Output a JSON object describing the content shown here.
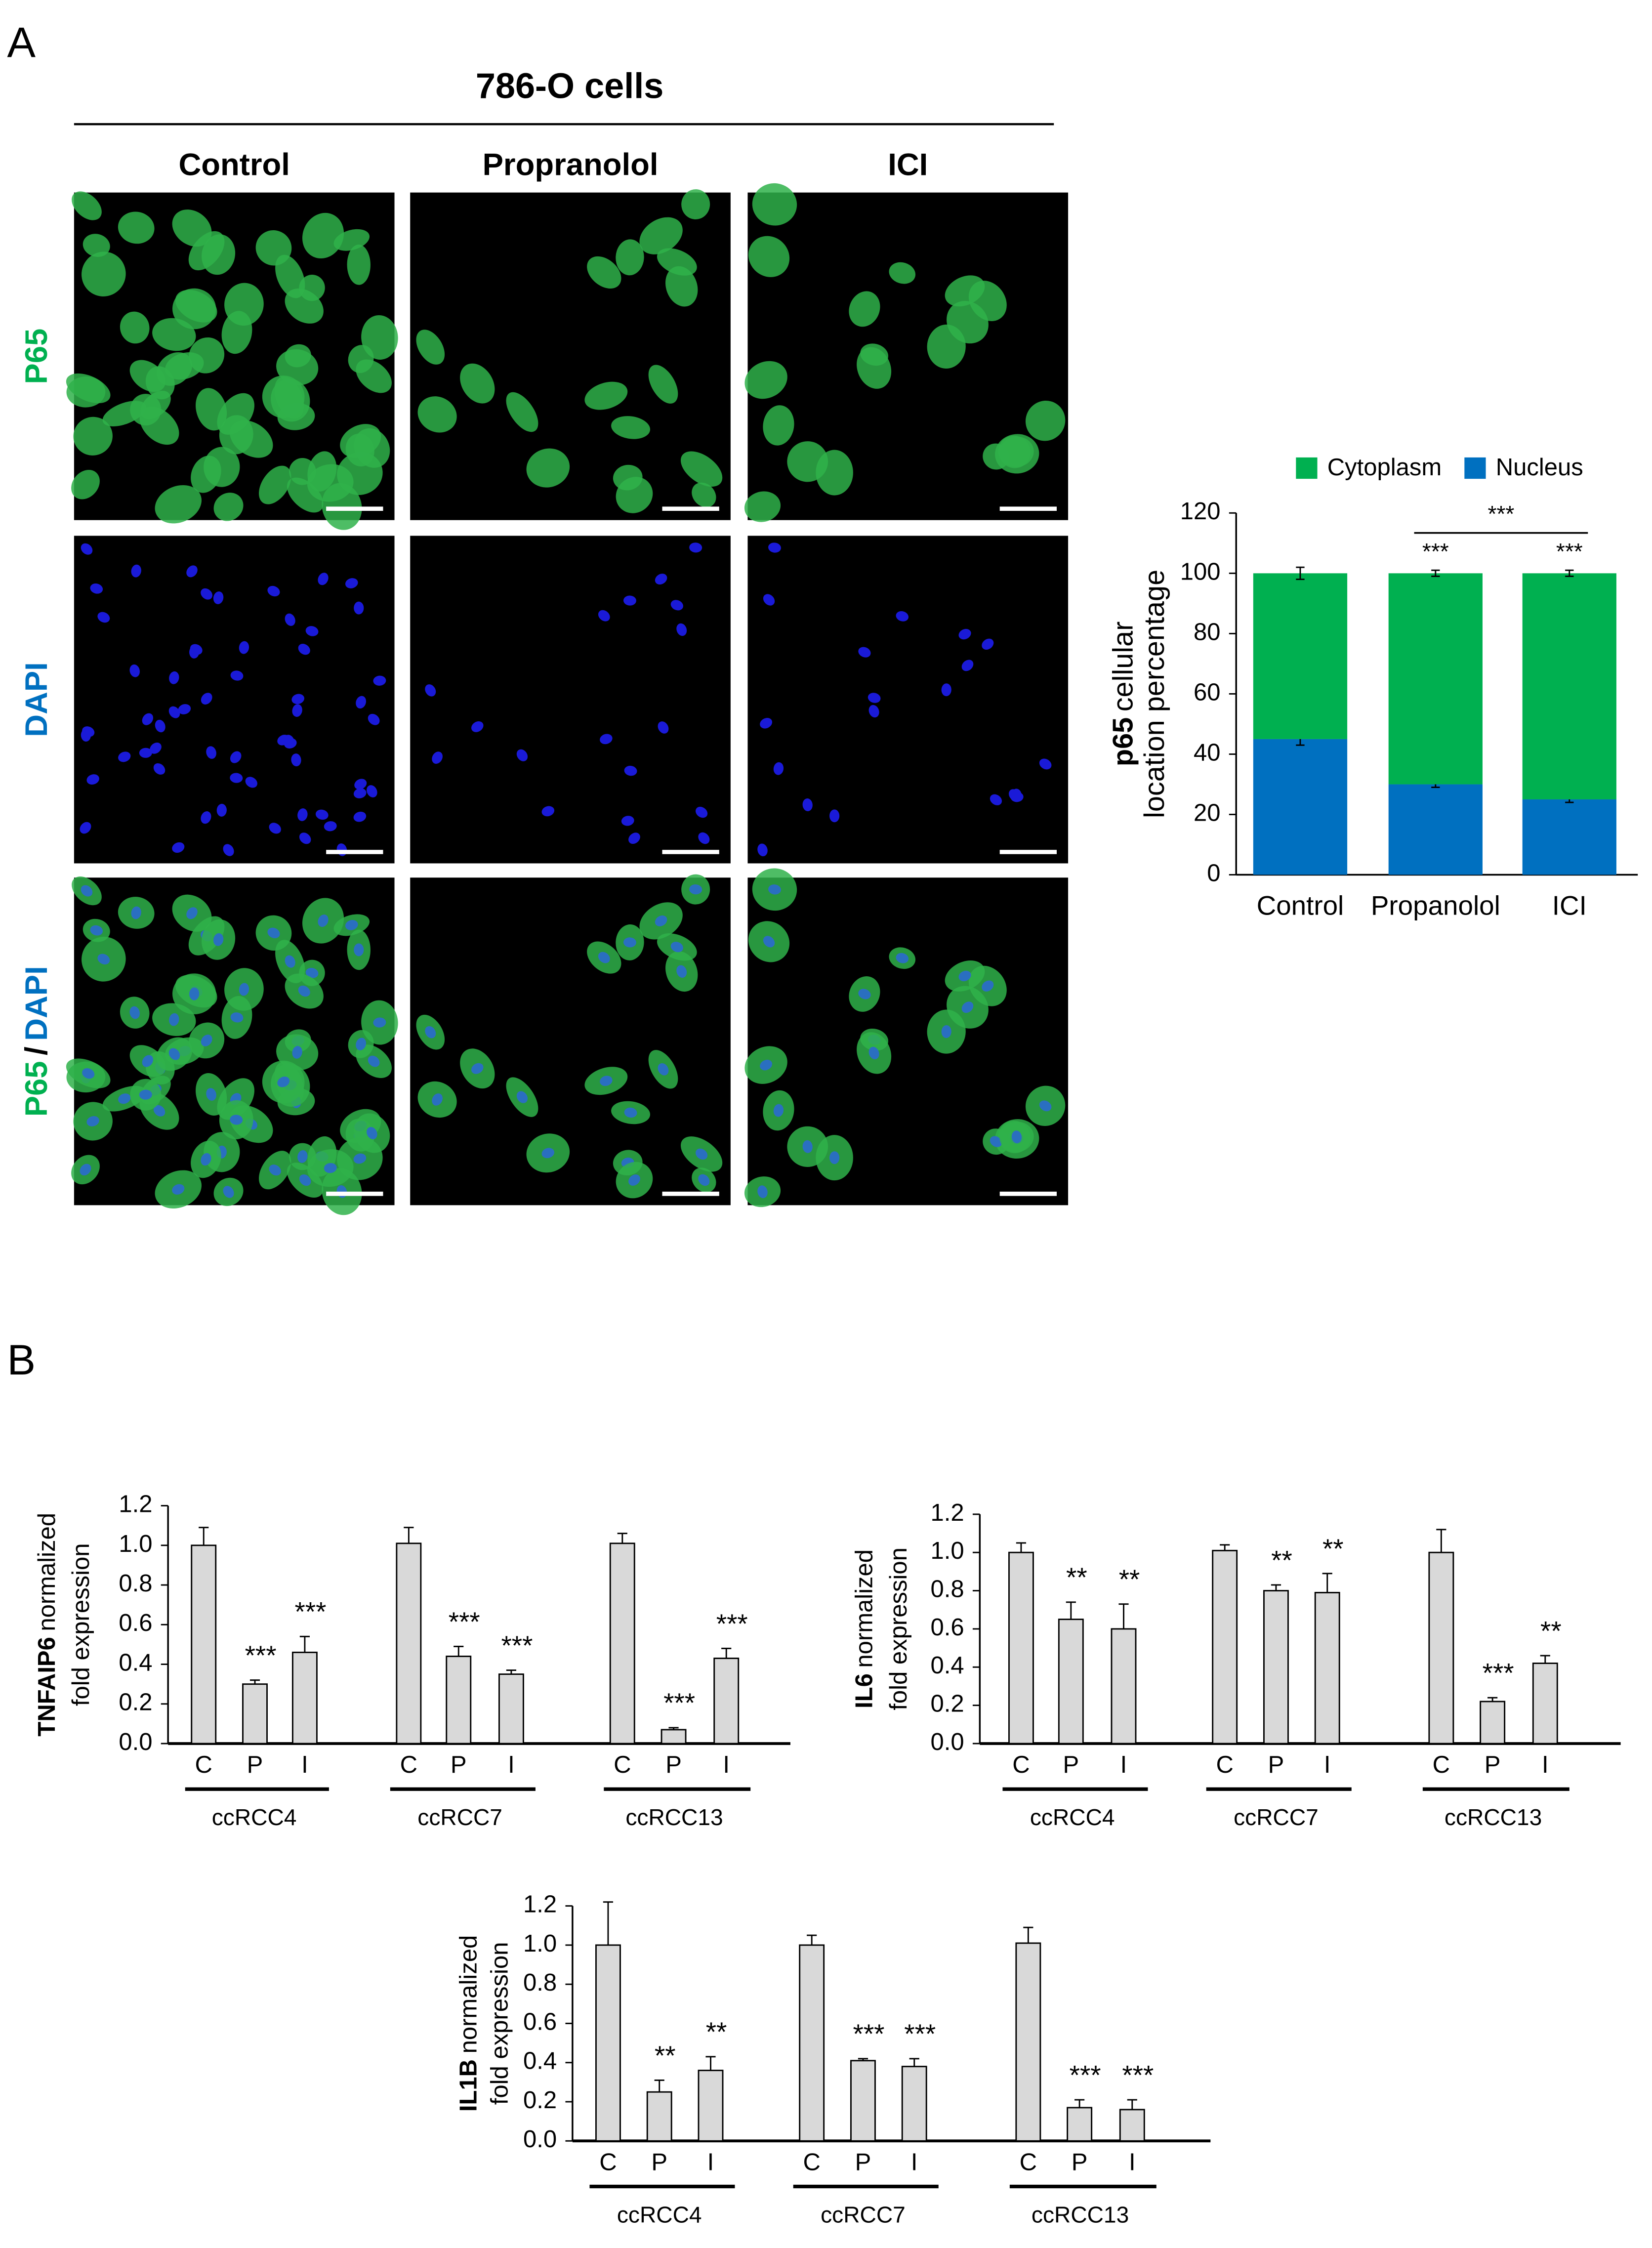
{
  "figure": {
    "panel_labels": [
      "A",
      "B"
    ],
    "title": "786-O cells",
    "columns": [
      "Control",
      "Propranolol",
      "ICI"
    ],
    "rows": [
      [
        "P65"
      ],
      [
        "DAPI"
      ],
      [
        "P65",
        "/",
        "DAPI"
      ]
    ],
    "row_colors": [
      [
        "#00b050"
      ],
      [
        "#0070c0"
      ],
      [
        "#00b050",
        "#000000",
        "#0070c0"
      ]
    ]
  },
  "chart_data": [
    {
      "type": "stacked_bar",
      "ylabel_bold": "p65",
      "ylabel": "cellular",
      "ylabel_line2": "location percentage",
      "categories": [
        "Control",
        "Propanolol",
        "ICI"
      ],
      "series": [
        {
          "name": "Cytoplasm",
          "color": "#00b050",
          "values": [
            55,
            70,
            75
          ],
          "errors": [
            2,
            1,
            1
          ]
        },
        {
          "name": "Nucleus",
          "color": "#0070c0",
          "values": [
            45,
            30,
            25
          ],
          "errors": [
            2,
            1,
            1
          ]
        }
      ],
      "ylim": [
        0,
        120
      ],
      "yticks": [
        0,
        20,
        40,
        60,
        80,
        100,
        120
      ],
      "annotations": [
        null,
        "***",
        "***"
      ],
      "bracket": {
        "from": 1,
        "to": 2,
        "label": "***"
      }
    },
    {
      "type": "grouped_bar",
      "ylabel_bold": "TNFAIP6",
      "ylabel": "normalized",
      "ylabel_line2": "fold expression",
      "color": "#d9d9d9",
      "ylim": [
        0,
        1.2
      ],
      "yticks": [
        {
          "value": 0,
          "label": "0.0"
        },
        0.2,
        0.4,
        0.6,
        0.8,
        {
          "value": 1,
          "label": "1.0"
        },
        1.2
      ],
      "groups": [
        {
          "name": "ccRCC4",
          "categories": [
            "C",
            "P",
            "I"
          ],
          "values": [
            1.0,
            0.3,
            0.46
          ],
          "errors": [
            0.09,
            0.02,
            0.08
          ],
          "annotations": [
            null,
            "***",
            "***"
          ]
        },
        {
          "name": "ccRCC7",
          "categories": [
            "C",
            "P",
            "I"
          ],
          "values": [
            1.01,
            0.44,
            0.35
          ],
          "errors": [
            0.08,
            0.05,
            0.02
          ],
          "annotations": [
            null,
            "***",
            "***"
          ]
        },
        {
          "name": "ccRCC13",
          "categories": [
            "C",
            "P",
            "I"
          ],
          "values": [
            1.01,
            0.07,
            0.43
          ],
          "errors": [
            0.05,
            0.01,
            0.05
          ],
          "annotations": [
            null,
            "***",
            "***"
          ]
        }
      ]
    },
    {
      "type": "grouped_bar",
      "ylabel_bold": "IL6",
      "ylabel": "normalized",
      "ylabel_line2": "fold expression",
      "color": "#d9d9d9",
      "ylim": [
        0,
        1.2
      ],
      "yticks": [
        {
          "value": 0,
          "label": "0.0"
        },
        0.2,
        0.4,
        0.6,
        0.8,
        {
          "value": 1,
          "label": "1.0"
        },
        1.2
      ],
      "groups": [
        {
          "name": "ccRCC4",
          "categories": [
            "C",
            "P",
            "I"
          ],
          "values": [
            1.0,
            0.65,
            0.6
          ],
          "errors": [
            0.05,
            0.09,
            0.13
          ],
          "annotations": [
            null,
            "**",
            "**"
          ]
        },
        {
          "name": "ccRCC7",
          "categories": [
            "C",
            "P",
            "I"
          ],
          "values": [
            1.01,
            0.8,
            0.79
          ],
          "errors": [
            0.03,
            0.03,
            0.1
          ],
          "annotations": [
            null,
            "**",
            "**"
          ]
        },
        {
          "name": "ccRCC13",
          "categories": [
            "C",
            "P",
            "I"
          ],
          "values": [
            1.0,
            0.22,
            0.42
          ],
          "errors": [
            0.12,
            0.02,
            0.04
          ],
          "annotations": [
            null,
            "***",
            "**"
          ]
        }
      ]
    },
    {
      "type": "grouped_bar",
      "ylabel_bold": "IL1B",
      "ylabel": "normalized",
      "ylabel_line2": "fold expression",
      "color": "#d9d9d9",
      "ylim": [
        0,
        1.2
      ],
      "yticks": [
        {
          "value": 0,
          "label": "0.0"
        },
        0.2,
        0.4,
        0.6,
        0.8,
        {
          "value": 1,
          "label": "1.0"
        },
        1.2
      ],
      "groups": [
        {
          "name": "ccRCC4",
          "categories": [
            "C",
            "P",
            "I"
          ],
          "values": [
            1.0,
            0.25,
            0.36
          ],
          "errors": [
            0.22,
            0.06,
            0.07
          ],
          "annotations": [
            null,
            "**",
            "**"
          ]
        },
        {
          "name": "ccRCC7",
          "categories": [
            "C",
            "P",
            "I"
          ],
          "values": [
            1.0,
            0.41,
            0.38
          ],
          "errors": [
            0.05,
            0.01,
            0.04
          ],
          "annotations": [
            null,
            "***",
            "***"
          ]
        },
        {
          "name": "ccRCC13",
          "categories": [
            "C",
            "P",
            "I"
          ],
          "values": [
            1.01,
            0.17,
            0.16
          ],
          "errors": [
            0.08,
            0.04,
            0.05
          ],
          "annotations": [
            null,
            "***",
            "***"
          ]
        }
      ]
    }
  ]
}
